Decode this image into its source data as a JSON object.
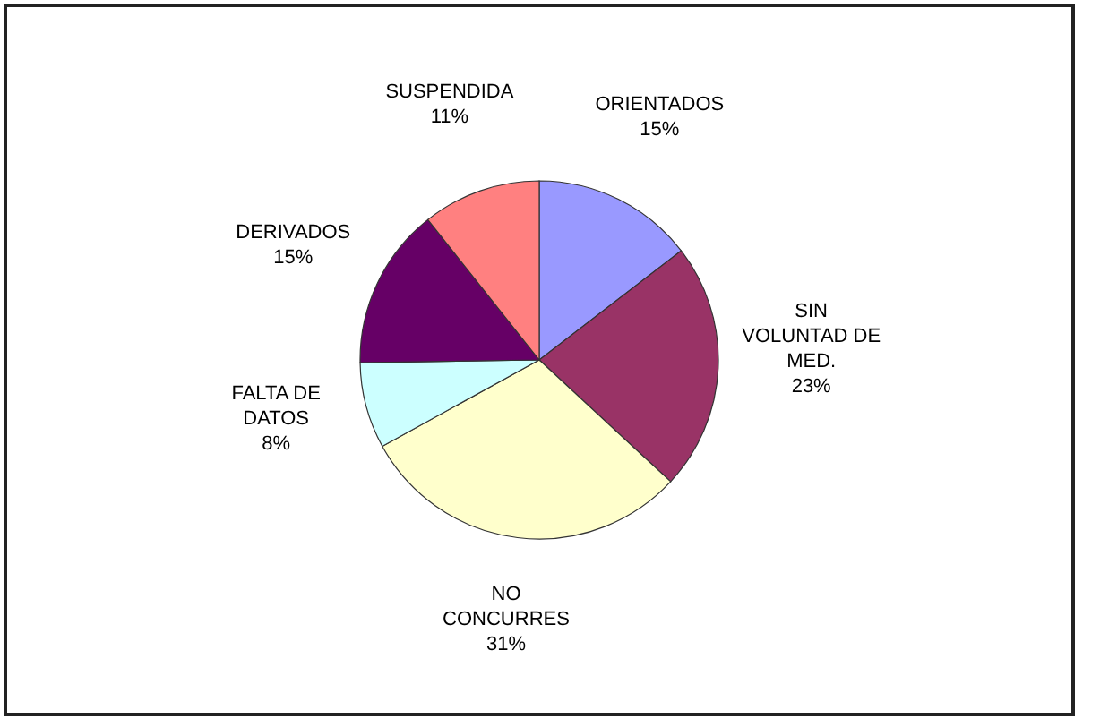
{
  "chart_data": {
    "type": "pie",
    "categories": [
      "ORIENTADOS",
      "SIN VOLUNTAD DE MED.",
      "NO CONCURRES",
      "FALTA DE DATOS",
      "DERIVADOS",
      "SUSPENDIDA"
    ],
    "values": [
      15,
      23,
      31,
      8,
      15,
      11
    ],
    "colors": [
      "#9999ff",
      "#993366",
      "#ffffcc",
      "#ccffff",
      "#660066",
      "#ff8080"
    ],
    "value_labels": [
      "15%",
      "23%",
      "31%",
      "8%",
      "15%",
      "11%"
    ]
  }
}
